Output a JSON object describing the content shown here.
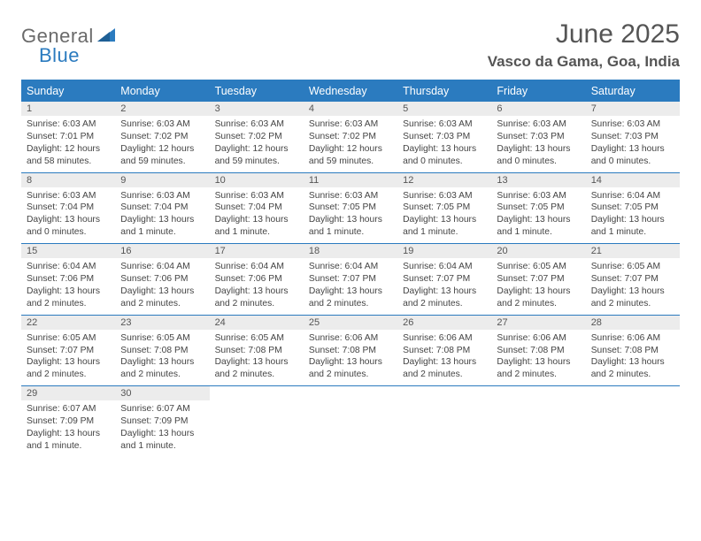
{
  "brand": {
    "text1": "General",
    "text2": "Blue"
  },
  "title": "June 2025",
  "location": "Vasco da Gama, Goa, India",
  "colors": {
    "header_blue": "#2b7bbf",
    "daynum_bg": "#ececec",
    "text": "#444444",
    "title_text": "#555555"
  },
  "weekday_headers": [
    "Sunday",
    "Monday",
    "Tuesday",
    "Wednesday",
    "Thursday",
    "Friday",
    "Saturday"
  ],
  "weeks": [
    [
      {
        "n": "1",
        "sr": "Sunrise: 6:03 AM",
        "ss": "Sunset: 7:01 PM",
        "d1": "Daylight: 12 hours",
        "d2": "and 58 minutes."
      },
      {
        "n": "2",
        "sr": "Sunrise: 6:03 AM",
        "ss": "Sunset: 7:02 PM",
        "d1": "Daylight: 12 hours",
        "d2": "and 59 minutes."
      },
      {
        "n": "3",
        "sr": "Sunrise: 6:03 AM",
        "ss": "Sunset: 7:02 PM",
        "d1": "Daylight: 12 hours",
        "d2": "and 59 minutes."
      },
      {
        "n": "4",
        "sr": "Sunrise: 6:03 AM",
        "ss": "Sunset: 7:02 PM",
        "d1": "Daylight: 12 hours",
        "d2": "and 59 minutes."
      },
      {
        "n": "5",
        "sr": "Sunrise: 6:03 AM",
        "ss": "Sunset: 7:03 PM",
        "d1": "Daylight: 13 hours",
        "d2": "and 0 minutes."
      },
      {
        "n": "6",
        "sr": "Sunrise: 6:03 AM",
        "ss": "Sunset: 7:03 PM",
        "d1": "Daylight: 13 hours",
        "d2": "and 0 minutes."
      },
      {
        "n": "7",
        "sr": "Sunrise: 6:03 AM",
        "ss": "Sunset: 7:03 PM",
        "d1": "Daylight: 13 hours",
        "d2": "and 0 minutes."
      }
    ],
    [
      {
        "n": "8",
        "sr": "Sunrise: 6:03 AM",
        "ss": "Sunset: 7:04 PM",
        "d1": "Daylight: 13 hours",
        "d2": "and 0 minutes."
      },
      {
        "n": "9",
        "sr": "Sunrise: 6:03 AM",
        "ss": "Sunset: 7:04 PM",
        "d1": "Daylight: 13 hours",
        "d2": "and 1 minute."
      },
      {
        "n": "10",
        "sr": "Sunrise: 6:03 AM",
        "ss": "Sunset: 7:04 PM",
        "d1": "Daylight: 13 hours",
        "d2": "and 1 minute."
      },
      {
        "n": "11",
        "sr": "Sunrise: 6:03 AM",
        "ss": "Sunset: 7:05 PM",
        "d1": "Daylight: 13 hours",
        "d2": "and 1 minute."
      },
      {
        "n": "12",
        "sr": "Sunrise: 6:03 AM",
        "ss": "Sunset: 7:05 PM",
        "d1": "Daylight: 13 hours",
        "d2": "and 1 minute."
      },
      {
        "n": "13",
        "sr": "Sunrise: 6:03 AM",
        "ss": "Sunset: 7:05 PM",
        "d1": "Daylight: 13 hours",
        "d2": "and 1 minute."
      },
      {
        "n": "14",
        "sr": "Sunrise: 6:04 AM",
        "ss": "Sunset: 7:05 PM",
        "d1": "Daylight: 13 hours",
        "d2": "and 1 minute."
      }
    ],
    [
      {
        "n": "15",
        "sr": "Sunrise: 6:04 AM",
        "ss": "Sunset: 7:06 PM",
        "d1": "Daylight: 13 hours",
        "d2": "and 2 minutes."
      },
      {
        "n": "16",
        "sr": "Sunrise: 6:04 AM",
        "ss": "Sunset: 7:06 PM",
        "d1": "Daylight: 13 hours",
        "d2": "and 2 minutes."
      },
      {
        "n": "17",
        "sr": "Sunrise: 6:04 AM",
        "ss": "Sunset: 7:06 PM",
        "d1": "Daylight: 13 hours",
        "d2": "and 2 minutes."
      },
      {
        "n": "18",
        "sr": "Sunrise: 6:04 AM",
        "ss": "Sunset: 7:07 PM",
        "d1": "Daylight: 13 hours",
        "d2": "and 2 minutes."
      },
      {
        "n": "19",
        "sr": "Sunrise: 6:04 AM",
        "ss": "Sunset: 7:07 PM",
        "d1": "Daylight: 13 hours",
        "d2": "and 2 minutes."
      },
      {
        "n": "20",
        "sr": "Sunrise: 6:05 AM",
        "ss": "Sunset: 7:07 PM",
        "d1": "Daylight: 13 hours",
        "d2": "and 2 minutes."
      },
      {
        "n": "21",
        "sr": "Sunrise: 6:05 AM",
        "ss": "Sunset: 7:07 PM",
        "d1": "Daylight: 13 hours",
        "d2": "and 2 minutes."
      }
    ],
    [
      {
        "n": "22",
        "sr": "Sunrise: 6:05 AM",
        "ss": "Sunset: 7:07 PM",
        "d1": "Daylight: 13 hours",
        "d2": "and 2 minutes."
      },
      {
        "n": "23",
        "sr": "Sunrise: 6:05 AM",
        "ss": "Sunset: 7:08 PM",
        "d1": "Daylight: 13 hours",
        "d2": "and 2 minutes."
      },
      {
        "n": "24",
        "sr": "Sunrise: 6:05 AM",
        "ss": "Sunset: 7:08 PM",
        "d1": "Daylight: 13 hours",
        "d2": "and 2 minutes."
      },
      {
        "n": "25",
        "sr": "Sunrise: 6:06 AM",
        "ss": "Sunset: 7:08 PM",
        "d1": "Daylight: 13 hours",
        "d2": "and 2 minutes."
      },
      {
        "n": "26",
        "sr": "Sunrise: 6:06 AM",
        "ss": "Sunset: 7:08 PM",
        "d1": "Daylight: 13 hours",
        "d2": "and 2 minutes."
      },
      {
        "n": "27",
        "sr": "Sunrise: 6:06 AM",
        "ss": "Sunset: 7:08 PM",
        "d1": "Daylight: 13 hours",
        "d2": "and 2 minutes."
      },
      {
        "n": "28",
        "sr": "Sunrise: 6:06 AM",
        "ss": "Sunset: 7:08 PM",
        "d1": "Daylight: 13 hours",
        "d2": "and 2 minutes."
      }
    ],
    [
      {
        "n": "29",
        "sr": "Sunrise: 6:07 AM",
        "ss": "Sunset: 7:09 PM",
        "d1": "Daylight: 13 hours",
        "d2": "and 1 minute."
      },
      {
        "n": "30",
        "sr": "Sunrise: 6:07 AM",
        "ss": "Sunset: 7:09 PM",
        "d1": "Daylight: 13 hours",
        "d2": "and 1 minute."
      },
      null,
      null,
      null,
      null,
      null
    ]
  ]
}
